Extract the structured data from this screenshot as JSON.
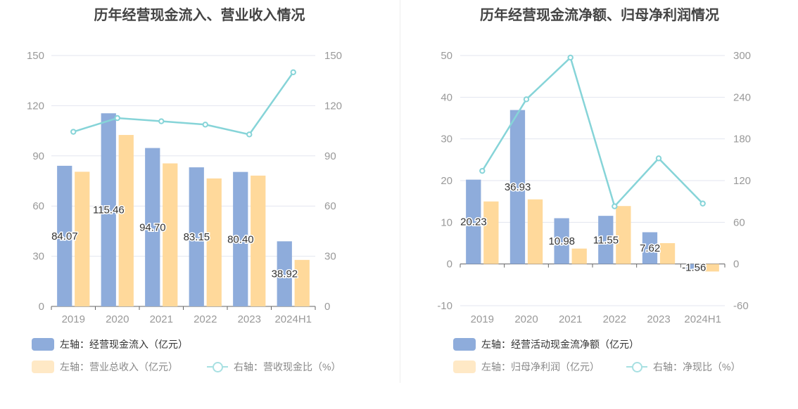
{
  "chart_data": [
    {
      "type": "bar",
      "title": "历年经营现金流入、营业收入情况",
      "categories": [
        "2019",
        "2020",
        "2021",
        "2022",
        "2023",
        "2024H1"
      ],
      "ylim_left": [
        0,
        150
      ],
      "ylim_right": [
        0,
        150
      ],
      "yticks_left": [
        "0",
        "30",
        "60",
        "90",
        "120",
        "150"
      ],
      "yticks_right": [
        "0",
        "30",
        "60",
        "90",
        "120",
        "150"
      ],
      "series": [
        {
          "name": "左轴：经营现金流入（亿元）",
          "axis": "left",
          "kind": "bar",
          "color": "#8eacdb",
          "values": [
            84.07,
            115.46,
            94.7,
            83.15,
            80.4,
            38.92
          ],
          "labels": [
            "84.07",
            "115.46",
            "94.70",
            "83.15",
            "80.40",
            "38.92"
          ]
        },
        {
          "name": "左轴：营业总收入（亿元）",
          "axis": "left",
          "kind": "bar",
          "color": "#ffd99b",
          "values": [
            80.5,
            102.5,
            85.5,
            76.5,
            78.2,
            27.8
          ]
        },
        {
          "name": "右轴：营收现金比（%）",
          "axis": "right",
          "kind": "line",
          "color": "#86d4d8",
          "values": [
            104.4,
            112.6,
            110.7,
            108.7,
            102.8,
            140.0
          ]
        }
      ],
      "grid": true,
      "legend_position": "bottom"
    },
    {
      "type": "bar",
      "title": "历年经营现金流净额、归母净利润情况",
      "categories": [
        "2019",
        "2020",
        "2021",
        "2022",
        "2023",
        "2024H1"
      ],
      "ylim_left": [
        -10,
        50
      ],
      "ylim_right": [
        -60,
        300
      ],
      "yticks_left": [
        "-10",
        "0",
        "10",
        "20",
        "30",
        "40",
        "50"
      ],
      "yticks_right": [
        "-60",
        "0",
        "60",
        "120",
        "180",
        "240",
        "300"
      ],
      "series": [
        {
          "name": "左轴：经营活动现金流净额（亿元）",
          "axis": "left",
          "kind": "bar",
          "color": "#8eacdb",
          "values": [
            20.23,
            36.93,
            10.98,
            11.55,
            7.62,
            -1.56
          ],
          "labels": [
            "20.23",
            "36.93",
            "10.98",
            "11.55",
            "7.62",
            "-1.56"
          ]
        },
        {
          "name": "左轴：归母净利润（亿元）",
          "axis": "left",
          "kind": "bar",
          "color": "#ffd99b",
          "values": [
            15.0,
            15.5,
            3.7,
            13.9,
            5.0,
            -1.8
          ]
        },
        {
          "name": "右轴：净现比（%）",
          "axis": "right",
          "kind": "line",
          "color": "#86d4d8",
          "values": [
            134.0,
            237.0,
            297.0,
            83.0,
            152.0,
            87.0
          ]
        }
      ],
      "grid": true,
      "legend_position": "bottom"
    }
  ]
}
